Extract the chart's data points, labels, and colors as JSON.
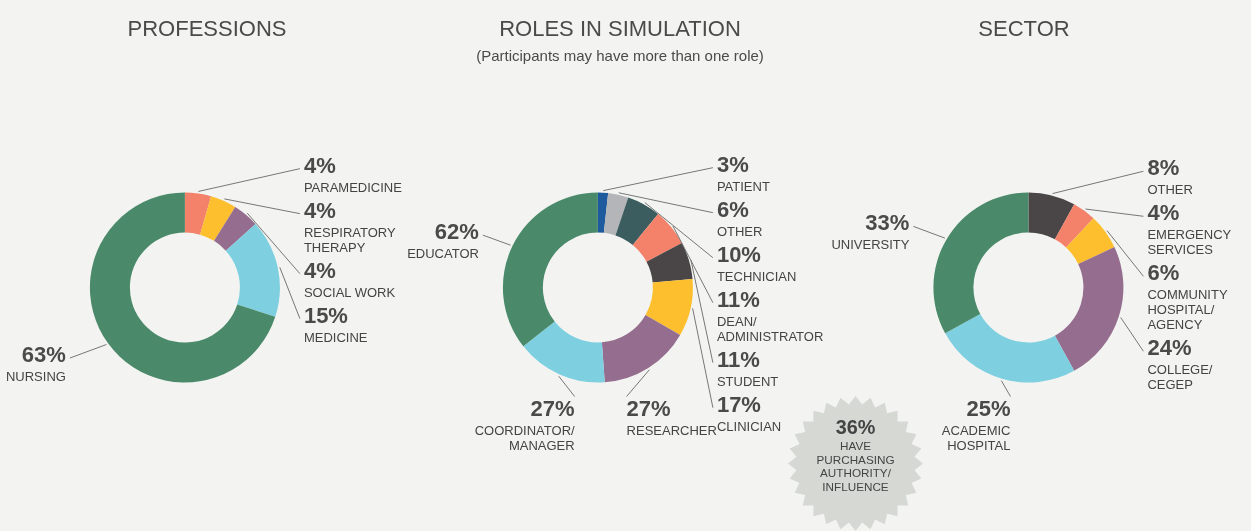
{
  "chart_data": [
    {
      "type": "donut",
      "title": "PROFESSIONS",
      "categories": [
        "PARAMEDICINE",
        "RESPIRATORY THERAPY",
        "SOCIAL WORK",
        "MEDICINE",
        "NURSING"
      ],
      "values": [
        4,
        4,
        4,
        15,
        63
      ],
      "value_labels": [
        "4%",
        "4%",
        "4%",
        "15%",
        "63%"
      ],
      "colors": [
        "#f4826a",
        "#fdbf2d",
        "#956e8f",
        "#7ecfe0",
        "#4a8a6a"
      ]
    },
    {
      "type": "donut",
      "title": "ROLES IN SIMULATION",
      "subtitle": "(Participants may have more than one role)",
      "categories": [
        "PATIENT",
        "OTHER",
        "TECHNICIAN",
        "DEAN/ ADMINISTRATOR",
        "STUDENT",
        "CLINICIAN",
        "RESEARCHER",
        "COORDINATOR/ MANAGER",
        "EDUCATOR"
      ],
      "values": [
        3,
        6,
        10,
        11,
        11,
        17,
        27,
        27,
        62
      ],
      "value_labels": [
        "3%",
        "6%",
        "10%",
        "11%",
        "11%",
        "17%",
        "27%",
        "27%",
        "62%"
      ],
      "colors": [
        "#1d5a9e",
        "#b3b5b8",
        "#3b5d5f",
        "#f4826a",
        "#4a4647",
        "#fdbf2d",
        "#956e8f",
        "#7ecfe0",
        "#4a8a6a"
      ],
      "annotations": [
        "36% HAVE PURCHASING AUTHORITY/ INFLUENCE"
      ]
    },
    {
      "type": "donut",
      "title": "SECTOR",
      "categories": [
        "OTHER",
        "EMERGENCY SERVICES",
        "COMMUNITY HOSPITAL/ AGENCY",
        "COLLEGE/ CEGEP",
        "ACADEMIC HOSPITAL",
        "UNIVERSITY"
      ],
      "values": [
        8,
        4,
        6,
        24,
        25,
        33
      ],
      "value_labels": [
        "8%",
        "4%",
        "6%",
        "24%",
        "25%",
        "33%"
      ],
      "colors": [
        "#4a4647",
        "#f4826a",
        "#fdbf2d",
        "#956e8f",
        "#7ecfe0",
        "#4a8a6a"
      ]
    }
  ]
}
